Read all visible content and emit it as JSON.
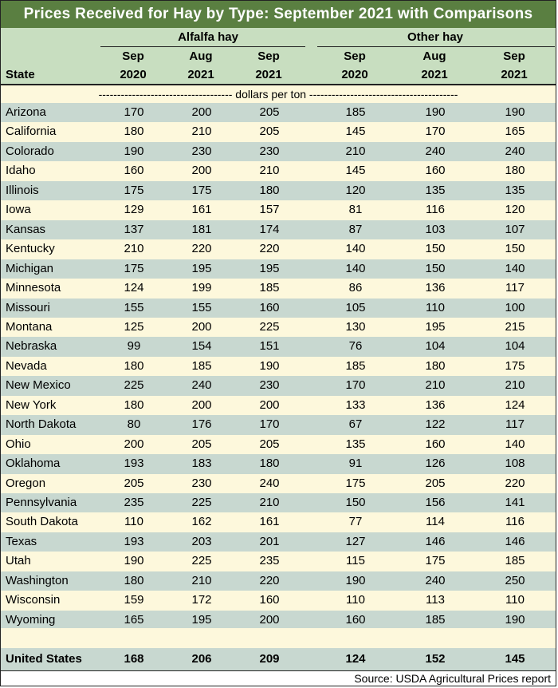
{
  "title": "Prices Received for Hay by Type: September 2021 with Comparisons",
  "groups": {
    "alfalfa": "Alfalfa hay",
    "other": "Other hay"
  },
  "columns": [
    {
      "month": "Sep",
      "year": "2020"
    },
    {
      "month": "Aug",
      "year": "2021"
    },
    {
      "month": "Sep",
      "year": "2021"
    },
    {
      "month": "Sep",
      "year": "2020"
    },
    {
      "month": "Aug",
      "year": "2021"
    },
    {
      "month": "Sep",
      "year": "2021"
    }
  ],
  "state_header": "State",
  "units": "------------------------------------ dollars per ton ----------------------------------------",
  "rows": [
    {
      "state": "Arizona",
      "values": [
        "170",
        "200",
        "205",
        "185",
        "190",
        "190"
      ]
    },
    {
      "state": "California",
      "values": [
        "180",
        "210",
        "205",
        "145",
        "170",
        "165"
      ]
    },
    {
      "state": "Colorado",
      "values": [
        "190",
        "230",
        "230",
        "210",
        "240",
        "240"
      ]
    },
    {
      "state": "Idaho",
      "values": [
        "160",
        "200",
        "210",
        "145",
        "160",
        "180"
      ]
    },
    {
      "state": "Illinois",
      "values": [
        "175",
        "175",
        "180",
        "120",
        "135",
        "135"
      ]
    },
    {
      "state": "Iowa",
      "values": [
        "129",
        "161",
        "157",
        "81",
        "116",
        "120"
      ]
    },
    {
      "state": "Kansas",
      "values": [
        "137",
        "181",
        "174",
        "87",
        "103",
        "107"
      ]
    },
    {
      "state": "Kentucky",
      "values": [
        "210",
        "220",
        "220",
        "140",
        "150",
        "150"
      ]
    },
    {
      "state": "Michigan",
      "values": [
        "175",
        "195",
        "195",
        "140",
        "150",
        "140"
      ]
    },
    {
      "state": "Minnesota",
      "values": [
        "124",
        "199",
        "185",
        "86",
        "136",
        "117"
      ]
    },
    {
      "state": "Missouri",
      "values": [
        "155",
        "155",
        "160",
        "105",
        "110",
        "100"
      ]
    },
    {
      "state": "Montana",
      "values": [
        "125",
        "200",
        "225",
        "130",
        "195",
        "215"
      ]
    },
    {
      "state": "Nebraska",
      "values": [
        "99",
        "154",
        "151",
        "76",
        "104",
        "104"
      ]
    },
    {
      "state": "Nevada",
      "values": [
        "180",
        "185",
        "190",
        "185",
        "180",
        "175"
      ]
    },
    {
      "state": "New Mexico",
      "values": [
        "225",
        "240",
        "230",
        "170",
        "210",
        "210"
      ]
    },
    {
      "state": "New York",
      "values": [
        "180",
        "200",
        "200",
        "133",
        "136",
        "124"
      ]
    },
    {
      "state": "North Dakota",
      "values": [
        "80",
        "176",
        "170",
        "67",
        "122",
        "117"
      ]
    },
    {
      "state": "Ohio",
      "values": [
        "200",
        "205",
        "205",
        "135",
        "160",
        "140"
      ]
    },
    {
      "state": "Oklahoma",
      "values": [
        "193",
        "183",
        "180",
        "91",
        "126",
        "108"
      ]
    },
    {
      "state": "Oregon",
      "values": [
        "205",
        "230",
        "240",
        "175",
        "205",
        "220"
      ]
    },
    {
      "state": "Pennsylvania",
      "values": [
        "235",
        "225",
        "210",
        "150",
        "156",
        "141"
      ]
    },
    {
      "state": "South Dakota",
      "values": [
        "110",
        "162",
        "161",
        "77",
        "114",
        "116"
      ]
    },
    {
      "state": "Texas",
      "values": [
        "193",
        "203",
        "201",
        "127",
        "146",
        "146"
      ]
    },
    {
      "state": "Utah",
      "values": [
        "190",
        "225",
        "235",
        "115",
        "175",
        "185"
      ]
    },
    {
      "state": "Washington",
      "values": [
        "180",
        "210",
        "220",
        "190",
        "240",
        "250"
      ]
    },
    {
      "state": "Wisconsin",
      "values": [
        "159",
        "172",
        "160",
        "110",
        "113",
        "110"
      ]
    },
    {
      "state": "Wyoming",
      "values": [
        "165",
        "195",
        "200",
        "160",
        "185",
        "190"
      ]
    }
  ],
  "total": {
    "state": "United States",
    "values": [
      "168",
      "206",
      "209",
      "124",
      "152",
      "145"
    ]
  },
  "source": "Source: USDA Agricultural Prices report",
  "colors": {
    "title_bg": "#5a7f41",
    "header_bg": "#c8dec0",
    "row_green": "#c8d8d0",
    "row_cream": "#fdf8dc"
  }
}
